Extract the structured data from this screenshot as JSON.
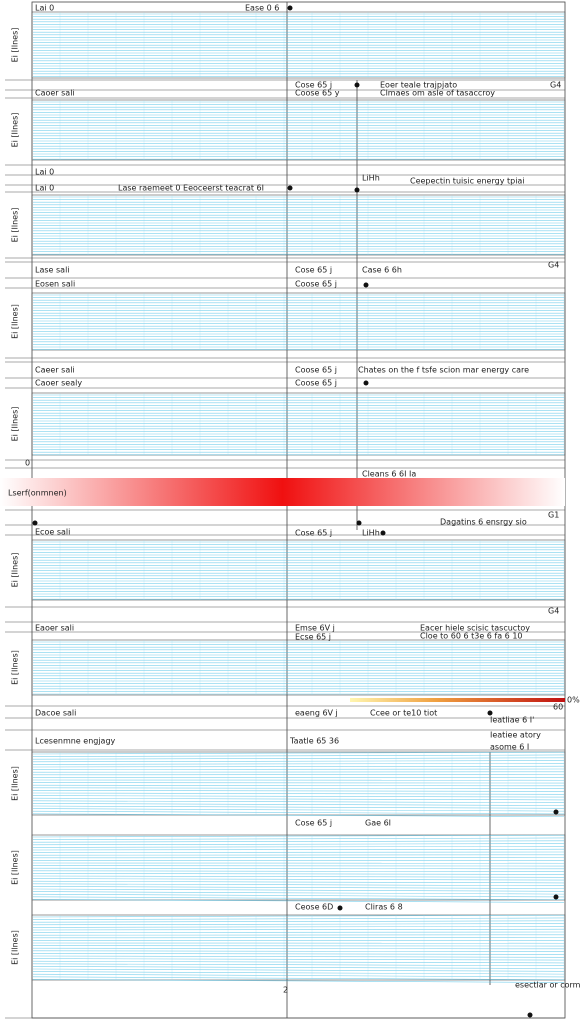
{
  "axis_labels": [
    "Ei [Ilnes]",
    "Ei [Ilnes]",
    "Ei [Ilnes]",
    "Ei [Ilnes]",
    "Ei [Ilnes]",
    "Ei [Ilnes]",
    "Ei [Ilnes]",
    "Ei [Ilnes]",
    "Ei [Ilnes]",
    "Ei [Ilnes]"
  ],
  "texts": [
    "Lai 0",
    "Ease 0 6",
    "Cose 65 j",
    "Eoer teale trajpjato",
    "G4",
    "Caoer sali",
    "Coose 65 y",
    "Clmaes om asle of tasaccroy",
    "Lai 0",
    "Lai 0",
    "Lase raemeet 0 Eeoceerst teacrat 6I",
    "LiHh",
    "Ceepectin tuisic energy tpiai",
    "Lase sali",
    "Cose 65 j",
    "Case 6 6h",
    "G4",
    "Eosen sali",
    "Coose 65 j",
    "Caeer sali",
    "Coose 65 j",
    "Chates on the f tsfe scion mar energy care",
    "Caoer sealy",
    "Coose 65 j",
    "0",
    "Cleans 6 6I Ia",
    "Lserf(onmnen)",
    "Dagatins 6 ensrgy sio",
    "G1",
    "LiHh",
    "Ecoe sali",
    "Cose 65 j",
    "G4",
    "Eaoer sali",
    "Emse 6V j",
    "Eacer hiele scisic tascuctoy",
    "Ecse 65 j",
    "Cloe to 60 6 t3e 6 fa 6 10",
    "0%",
    "60",
    "Dacoe sali",
    "eaeng 6V j",
    "Ccee or te10 tiot",
    "Ieatliae 6 I'",
    "Lcesenmne engjagy",
    "Taatle 65 36",
    "Ieatiee atory",
    "asome 6 I",
    "Cose 65 j",
    "Gae 6I",
    "Ceose 6D",
    "Cliras 6 8",
    "esectlar or corm",
    "2"
  ]
}
